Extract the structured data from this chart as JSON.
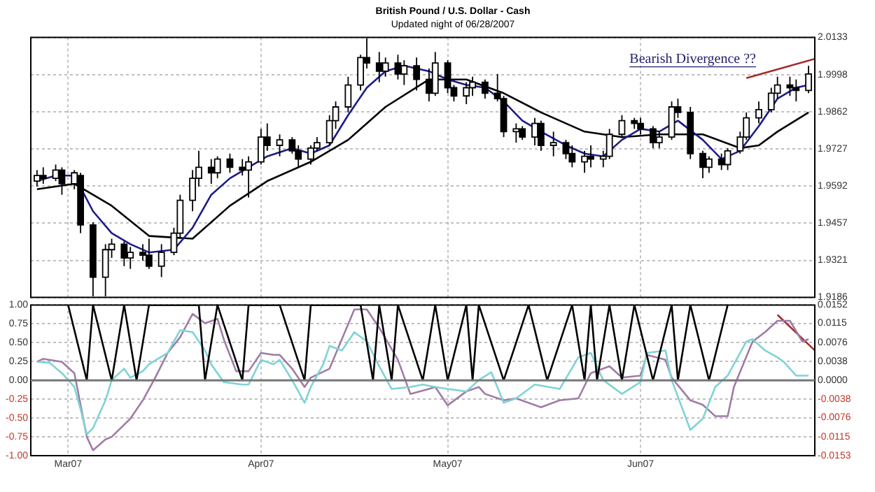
{
  "chart_data": [
    {
      "type": "candlestick",
      "title": "British Pound / U.S. Dollar - Cash",
      "subtitle": "Updated night of 06/28/2007",
      "annotations": [
        "Bearish Divergence ??"
      ],
      "x": [
        "2007-02-24",
        "2007-02-25",
        "2007-02-27",
        "2007-02-28",
        "2007-03-02",
        "2007-03-03",
        "2007-03-05",
        "2007-03-07",
        "2007-03-08",
        "2007-03-10",
        "2007-03-11",
        "2007-03-13",
        "2007-03-14",
        "2007-03-16",
        "2007-03-18",
        "2007-03-19",
        "2007-03-21",
        "2007-03-22",
        "2007-03-24",
        "2007-03-25",
        "2007-03-27",
        "2007-03-29",
        "2007-03-30",
        "2007-04-01",
        "2007-04-02",
        "2007-04-04",
        "2007-04-06",
        "2007-04-07",
        "2007-04-09",
        "2007-04-10",
        "2007-04-12",
        "2007-04-13",
        "2007-04-15",
        "2007-04-17",
        "2007-04-18",
        "2007-04-20",
        "2007-04-21",
        "2007-04-23",
        "2007-04-24",
        "2007-04-26",
        "2007-04-28",
        "2007-04-29",
        "2007-05-01",
        "2007-05-02",
        "2007-05-04",
        "2007-05-05",
        "2007-05-07",
        "2007-05-09",
        "2007-05-10",
        "2007-05-12",
        "2007-05-13",
        "2007-05-15",
        "2007-05-16",
        "2007-05-18",
        "2007-05-20",
        "2007-05-21",
        "2007-05-23",
        "2007-05-24",
        "2007-05-26",
        "2007-05-27",
        "2007-05-29",
        "2007-05-31",
        "2007-06-01",
        "2007-06-03",
        "2007-06-04",
        "2007-06-06",
        "2007-06-07",
        "2007-06-09",
        "2007-06-11",
        "2007-06-12",
        "2007-06-14",
        "2007-06-15",
        "2007-06-17",
        "2007-06-18",
        "2007-06-20",
        "2007-06-22",
        "2007-06-23",
        "2007-06-25",
        "2007-06-26",
        "2007-06-28"
      ],
      "ohlc": [
        [
          1.961,
          1.965,
          1.959,
          1.963
        ],
        [
          1.963,
          1.966,
          1.96,
          1.962
        ],
        [
          1.962,
          1.967,
          1.961,
          1.965
        ],
        [
          1.965,
          1.966,
          1.956,
          1.96
        ],
        [
          1.96,
          1.965,
          1.958,
          1.964
        ],
        [
          1.963,
          1.964,
          1.942,
          1.945
        ],
        [
          1.945,
          1.946,
          1.919,
          1.926
        ],
        [
          1.926,
          1.938,
          1.919,
          1.936
        ],
        [
          1.936,
          1.94,
          1.933,
          1.938
        ],
        [
          1.938,
          1.939,
          1.93,
          1.933
        ],
        [
          1.933,
          1.937,
          1.929,
          1.935
        ],
        [
          1.935,
          1.938,
          1.932,
          1.934
        ],
        [
          1.934,
          1.94,
          1.929,
          1.93
        ],
        [
          1.93,
          1.938,
          1.926,
          1.935
        ],
        [
          1.935,
          1.944,
          1.934,
          1.942
        ],
        [
          1.942,
          1.956,
          1.94,
          1.954
        ],
        [
          1.954,
          1.965,
          1.95,
          1.962
        ],
        [
          1.962,
          1.972,
          1.959,
          1.966
        ],
        [
          1.966,
          1.969,
          1.96,
          1.964
        ],
        [
          1.964,
          1.97,
          1.962,
          1.969
        ],
        [
          1.969,
          1.971,
          1.964,
          1.966
        ],
        [
          1.966,
          1.969,
          1.963,
          1.965
        ],
        [
          1.965,
          1.97,
          1.955,
          1.968
        ],
        [
          1.968,
          1.98,
          1.967,
          1.977
        ],
        [
          1.977,
          1.982,
          1.972,
          1.974
        ],
        [
          1.974,
          1.978,
          1.97,
          1.976
        ],
        [
          1.976,
          1.977,
          1.971,
          1.972
        ],
        [
          1.972,
          1.974,
          1.966,
          1.969
        ],
        [
          1.969,
          1.974,
          1.967,
          1.973
        ],
        [
          1.973,
          1.977,
          1.972,
          1.975
        ],
        [
          1.975,
          1.985,
          1.974,
          1.983
        ],
        [
          1.983,
          1.99,
          1.98,
          1.988
        ],
        [
          1.988,
          1.999,
          1.986,
          1.996
        ],
        [
          1.996,
          2.007,
          1.994,
          2.006
        ],
        [
          2.006,
          2.013,
          2.002,
          2.004
        ],
        [
          2.004,
          2.008,
          1.997,
          2.001
        ],
        [
          2.001,
          2.006,
          1.999,
          2.004
        ],
        [
          2.004,
          2.007,
          1.998,
          2.0
        ],
        [
          2.0,
          2.005,
          1.996,
          2.003
        ],
        [
          2.003,
          2.006,
          1.994,
          1.998
        ],
        [
          1.998,
          2.002,
          1.99,
          1.993
        ],
        [
          1.993,
          2.008,
          1.992,
          2.004
        ],
        [
          2.004,
          2.005,
          1.993,
          1.995
        ],
        [
          1.995,
          1.996,
          1.99,
          1.992
        ],
        [
          1.992,
          1.997,
          1.989,
          1.995
        ],
        [
          1.995,
          1.999,
          1.992,
          1.997
        ],
        [
          1.997,
          1.998,
          1.991,
          1.993
        ],
        [
          1.993,
          2.0,
          1.99,
          1.991
        ],
        [
          1.991,
          1.992,
          1.977,
          1.979
        ],
        [
          1.979,
          1.982,
          1.975,
          1.98
        ],
        [
          1.98,
          1.981,
          1.976,
          1.977
        ],
        [
          1.977,
          1.984,
          1.974,
          1.982
        ],
        [
          1.982,
          1.983,
          1.972,
          1.974
        ],
        [
          1.974,
          1.979,
          1.97,
          1.975
        ],
        [
          1.975,
          1.976,
          1.969,
          1.971
        ],
        [
          1.971,
          1.974,
          1.966,
          1.968
        ],
        [
          1.968,
          1.972,
          1.964,
          1.97
        ],
        [
          1.97,
          1.974,
          1.966,
          1.969
        ],
        [
          1.969,
          1.972,
          1.966,
          1.97
        ],
        [
          1.97,
          1.98,
          1.969,
          1.978
        ],
        [
          1.978,
          1.985,
          1.977,
          1.983
        ],
        [
          1.983,
          1.984,
          1.98,
          1.982
        ],
        [
          1.982,
          1.984,
          1.978,
          1.98
        ],
        [
          1.98,
          1.981,
          1.973,
          1.975
        ],
        [
          1.975,
          1.979,
          1.973,
          1.977
        ],
        [
          1.977,
          1.99,
          1.976,
          1.988
        ],
        [
          1.988,
          1.991,
          1.984,
          1.986
        ],
        [
          1.986,
          1.988,
          1.969,
          1.971
        ],
        [
          1.971,
          1.972,
          1.962,
          1.966
        ],
        [
          1.966,
          1.97,
          1.964,
          1.969
        ],
        [
          1.969,
          1.971,
          1.965,
          1.967
        ],
        [
          1.967,
          1.973,
          1.965,
          1.972
        ],
        [
          1.972,
          1.979,
          1.971,
          1.977
        ],
        [
          1.977,
          1.986,
          1.976,
          1.984
        ],
        [
          1.984,
          1.99,
          1.982,
          1.987
        ],
        [
          1.987,
          1.995,
          1.986,
          1.993
        ],
        [
          1.993,
          1.999,
          1.991,
          1.996
        ],
        [
          1.996,
          1.999,
          1.992,
          1.995
        ],
        [
          1.995,
          1.998,
          1.99,
          1.994
        ],
        [
          1.994,
          2.003,
          1.993,
          2.0
        ]
      ],
      "series": [
        {
          "type": "line",
          "color": "#1c1c8a",
          "x": [
            "2007-02-24",
            "2007-02-27",
            "2007-03-02",
            "2007-03-05",
            "2007-03-08",
            "2007-03-11",
            "2007-03-14",
            "2007-03-18",
            "2007-03-21",
            "2007-03-24",
            "2007-03-27",
            "2007-03-30",
            "2007-04-02",
            "2007-04-06",
            "2007-04-09",
            "2007-04-12",
            "2007-04-15",
            "2007-04-18",
            "2007-04-21",
            "2007-04-24",
            "2007-04-28",
            "2007-05-01",
            "2007-05-04",
            "2007-05-07",
            "2007-05-10",
            "2007-05-13",
            "2007-05-16",
            "2007-05-20",
            "2007-05-23",
            "2007-05-26",
            "2007-05-29",
            "2007-06-01",
            "2007-06-04",
            "2007-06-07",
            "2007-06-11",
            "2007-06-14",
            "2007-06-17",
            "2007-06-20",
            "2007-06-23",
            "2007-06-26",
            "2007-06-28"
          ],
          "values": [
            1.961,
            1.963,
            1.963,
            1.95,
            1.942,
            1.938,
            1.935,
            1.936,
            1.944,
            1.956,
            1.962,
            1.966,
            1.97,
            1.973,
            1.971,
            1.974,
            1.985,
            1.995,
            2.001,
            2.003,
            2.001,
            1.998,
            1.996,
            1.995,
            1.99,
            1.983,
            1.979,
            1.974,
            1.971,
            1.97,
            1.976,
            1.98,
            1.979,
            1.983,
            1.976,
            1.969,
            1.972,
            1.981,
            1.991,
            1.995,
            1.996
          ]
        },
        {
          "type": "line",
          "color": "#000000",
          "x": [
            "2007-02-24",
            "2007-03-02",
            "2007-03-08",
            "2007-03-14",
            "2007-03-21",
            "2007-03-27",
            "2007-04-02",
            "2007-04-09",
            "2007-04-15",
            "2007-04-21",
            "2007-04-28",
            "2007-05-04",
            "2007-05-10",
            "2007-05-16",
            "2007-05-23",
            "2007-05-29",
            "2007-06-04",
            "2007-06-11",
            "2007-06-17",
            "2007-06-20",
            "2007-06-23",
            "2007-06-28"
          ],
          "values": [
            1.958,
            1.96,
            1.952,
            1.941,
            1.94,
            1.952,
            1.961,
            1.968,
            1.976,
            1.988,
            1.998,
            1.998,
            1.993,
            1.986,
            1.979,
            1.977,
            1.978,
            1.978,
            1.973,
            1.974,
            1.979,
            1.986
          ]
        },
        {
          "type": "line",
          "color": "#a52a2a",
          "x": [
            "2007-06-18",
            "2007-06-29"
          ],
          "values": [
            1.9985,
            2.0055
          ]
        }
      ],
      "xlim": [
        "2007-02-23",
        "2007-06-29"
      ],
      "xticks": [
        {
          "value": "2007-03-01",
          "label": null
        },
        {
          "value": "2007-04-01",
          "label": null
        },
        {
          "value": "2007-05-01",
          "label": null
        },
        {
          "value": "2007-06-01",
          "label": null
        }
      ],
      "ylim": [
        1.9186,
        2.0133
      ],
      "yticks": [
        1.9186,
        1.9321,
        1.9457,
        1.9592,
        1.9727,
        1.9862,
        1.9998,
        2.0133
      ],
      "grid": true,
      "tick_labels": "y"
    },
    {
      "type": "line",
      "series": [
        {
          "color": "#000000",
          "x": [
            "2007-03-01",
            "2007-03-04",
            "2007-03-05",
            "2007-03-08",
            "2007-03-10",
            "2007-03-12",
            "2007-03-14",
            "2007-03-22",
            "2007-03-23",
            "2007-03-25",
            "2007-03-29",
            "2007-03-30",
            "2007-04-04",
            "2007-04-08",
            "2007-04-09",
            "2007-04-17",
            "2007-04-19",
            "2007-04-20",
            "2007-04-22",
            "2007-04-23",
            "2007-04-27",
            "2007-04-29",
            "2007-05-01",
            "2007-05-04",
            "2007-05-05",
            "2007-05-06",
            "2007-05-10",
            "2007-05-14",
            "2007-05-17",
            "2007-05-21",
            "2007-05-23",
            "2007-05-24",
            "2007-05-25",
            "2007-05-27",
            "2007-05-29",
            "2007-05-31",
            "2007-06-03",
            "2007-06-06",
            "2007-06-07",
            "2007-06-09",
            "2007-06-12",
            "2007-06-15"
          ],
          "values": [
            1,
            0,
            1,
            0,
            1,
            0,
            1,
            1,
            0,
            1,
            0,
            1,
            1,
            0,
            1,
            1,
            0,
            1,
            0,
            1,
            0,
            1,
            0,
            1,
            0,
            1,
            0,
            1,
            0,
            1,
            0,
            1,
            0,
            1,
            0,
            1,
            0,
            1,
            0,
            1,
            0,
            1
          ]
        },
        {
          "color": "#7fd3d6",
          "axis": "y2",
          "x": [
            "2007-02-24",
            "2007-02-26",
            "2007-02-28",
            "2007-03-02",
            "2007-03-03",
            "2007-03-04",
            "2007-03-05",
            "2007-03-07",
            "2007-03-08",
            "2007-03-10",
            "2007-03-11",
            "2007-03-13",
            "2007-03-14",
            "2007-03-17",
            "2007-03-19",
            "2007-03-21",
            "2007-03-23",
            "2007-03-24",
            "2007-03-26",
            "2007-03-29",
            "2007-03-30",
            "2007-04-01",
            "2007-04-03",
            "2007-04-04",
            "2007-04-06",
            "2007-04-08",
            "2007-04-09",
            "2007-04-11",
            "2007-04-12",
            "2007-04-14",
            "2007-04-16",
            "2007-04-18",
            "2007-04-20",
            "2007-04-22",
            "2007-04-25",
            "2007-04-27",
            "2007-04-29",
            "2007-05-01",
            "2007-05-04",
            "2007-05-06",
            "2007-05-08",
            "2007-05-10",
            "2007-05-12",
            "2007-05-15",
            "2007-05-19",
            "2007-05-22",
            "2007-05-24",
            "2007-05-26",
            "2007-05-29",
            "2007-06-01",
            "2007-06-02",
            "2007-06-05",
            "2007-06-06",
            "2007-06-09",
            "2007-06-11",
            "2007-06-13",
            "2007-06-15",
            "2007-06-18",
            "2007-06-19",
            "2007-06-21",
            "2007-06-23",
            "2007-06-24",
            "2007-06-26",
            "2007-06-28"
          ],
          "values": [
            0.0037,
            0.0035,
            0.0014,
            -0.0014,
            -0.0059,
            -0.011,
            -0.0097,
            -0.0041,
            0,
            0.0023,
            0.0005,
            0.0018,
            0.0032,
            0.0055,
            0.0101,
            0.0097,
            0.006,
            0.0032,
            -0.0004,
            -0.0009,
            -0.0009,
            0.0041,
            0.0032,
            0.0041,
            0,
            -0.0046,
            -0.0014,
            0.0032,
            0.0069,
            0.006,
            0.0097,
            0.0078,
            0.0028,
            -0.0018,
            -0.0014,
            -0.0009,
            -0.0014,
            -0.0018,
            -0.0023,
            0,
            0.0016,
            -0.0046,
            -0.0037,
            -0.0009,
            -0.0018,
            0.0046,
            0.0055,
            0,
            -0.0028,
            -0.0004,
            0.0055,
            0.006,
            0,
            -0.0101,
            -0.0078,
            -0.0014,
            0.0009,
            0.0078,
            0.0083,
            0.006,
            0.0046,
            0.0037,
            0.0009,
            0.0009
          ]
        },
        {
          "color": "#a07ca6",
          "axis": "y2",
          "x": [
            "2007-02-24",
            "2007-02-25",
            "2007-02-28",
            "2007-03-02",
            "2007-03-03",
            "2007-03-04",
            "2007-03-05",
            "2007-03-07",
            "2007-03-08",
            "2007-03-11",
            "2007-03-13",
            "2007-03-15",
            "2007-03-17",
            "2007-03-19",
            "2007-03-21",
            "2007-03-23",
            "2007-03-25",
            "2007-03-26",
            "2007-03-28",
            "2007-03-30",
            "2007-04-01",
            "2007-04-03",
            "2007-04-04",
            "2007-04-06",
            "2007-04-08",
            "2007-04-09",
            "2007-04-12",
            "2007-04-14",
            "2007-04-16",
            "2007-04-18",
            "2007-04-20",
            "2007-04-23",
            "2007-04-25",
            "2007-04-28",
            "2007-04-29",
            "2007-05-01",
            "2007-05-04",
            "2007-05-06",
            "2007-05-07",
            "2007-05-10",
            "2007-05-12",
            "2007-05-16",
            "2007-05-19",
            "2007-05-22",
            "2007-05-24",
            "2007-05-27",
            "2007-05-29",
            "2007-06-01",
            "2007-06-02",
            "2007-06-05",
            "2007-06-06",
            "2007-06-09",
            "2007-06-11",
            "2007-06-13",
            "2007-06-15",
            "2007-06-16",
            "2007-06-19",
            "2007-06-21",
            "2007-06-23",
            "2007-06-25",
            "2007-06-27",
            "2007-06-28"
          ],
          "values": [
            0.0037,
            0.0043,
            0.0037,
            0.0014,
            -0.005,
            -0.0115,
            -0.0142,
            -0.012,
            -0.0115,
            -0.0078,
            -0.0041,
            0.0005,
            0.0055,
            0.0087,
            0.0134,
            0.0115,
            0.0124,
            0.0083,
            0.0018,
            0.0018,
            0.0055,
            0.0051,
            0.0051,
            0.0023,
            -0.0014,
            0.0005,
            0.0023,
            0.0083,
            0.0143,
            0.0143,
            0.0106,
            0.0041,
            -0.0028,
            -0.0018,
            -0.0014,
            -0.0051,
            -0.0023,
            -0.0014,
            -0.0028,
            -0.0041,
            -0.0037,
            -0.0055,
            -0.0041,
            -0.0037,
            0.0014,
            0.0028,
            0.0005,
            0.0009,
            0.0051,
            0.0041,
            0.0005,
            -0.0041,
            -0.005,
            -0.0073,
            -0.0073,
            -0.0014,
            0.0078,
            0.0097,
            0.012,
            0.012,
            0.0078,
            0.0083
          ]
        },
        {
          "color": "#a52a2a",
          "axis": "y2",
          "x": [
            "2007-06-23",
            "2007-06-29"
          ],
          "values": [
            0.0132,
            0.006
          ]
        }
      ],
      "xlim": [
        "2007-02-23",
        "2007-06-29"
      ],
      "xticks": [
        {
          "value": "2007-03-01",
          "label": "Mar07"
        },
        {
          "value": "2007-04-01",
          "label": "Apr07"
        },
        {
          "value": "2007-05-01",
          "label": "May07"
        },
        {
          "value": "2007-06-01",
          "label": "Jun07"
        }
      ],
      "ylim": [
        -1,
        1
      ],
      "yticks": [
        {
          "value": -1,
          "label": "-1.00"
        },
        {
          "value": -0.75,
          "label": "-0.75"
        },
        {
          "value": -0.5,
          "label": "-0.50"
        },
        {
          "value": -0.25,
          "label": "-0.25"
        },
        {
          "value": 0,
          "label": "0.00"
        },
        {
          "value": 0.25,
          "label": "0.25"
        },
        {
          "value": 0.5,
          "label": "0.50"
        },
        {
          "value": 0.75,
          "label": "0.75"
        },
        {
          "value": 1,
          "label": "1.00"
        }
      ],
      "ref_lines": [
        {
          "axis": "y",
          "value": 0,
          "color": "#777777"
        }
      ],
      "y2lim": [
        -0.0153,
        0.0152
      ],
      "y2ticks": [
        {
          "value": -0.0153,
          "label": "-0.0153"
        },
        {
          "value": -0.0115,
          "label": "-0.0115"
        },
        {
          "value": -0.0076,
          "label": "-0.0076"
        },
        {
          "value": -0.0038,
          "label": "-0.0038"
        },
        {
          "value": 0,
          "label": "0.0000"
        },
        {
          "value": 0.0038,
          "label": "0.0038"
        },
        {
          "value": 0.0076,
          "label": "0.0076"
        },
        {
          "value": 0.0115,
          "label": "0.0115"
        },
        {
          "value": 0.0152,
          "label": "0.0152"
        }
      ],
      "grid": true
    }
  ]
}
